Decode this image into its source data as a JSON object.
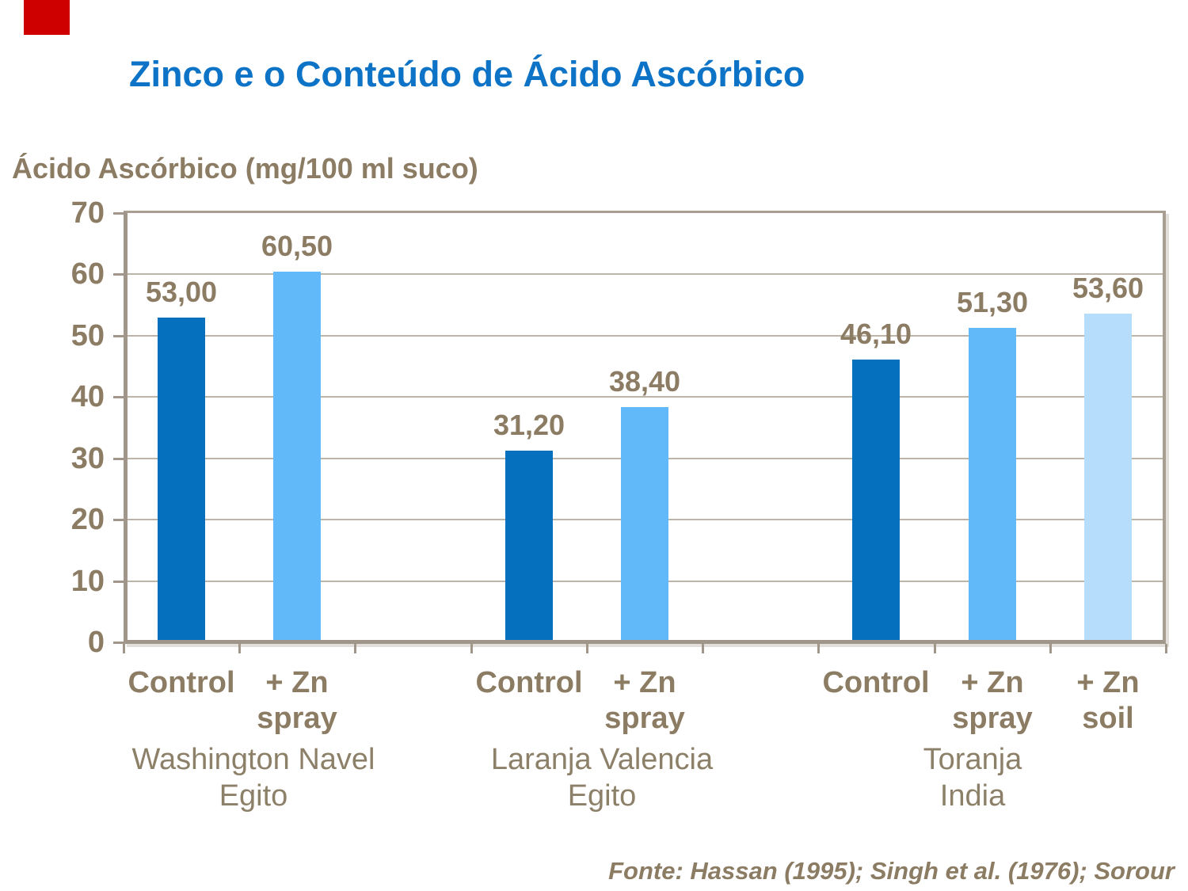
{
  "title": "Zinco e o Conteúdo de Ácido Ascórbico",
  "source": "Fonte: Hassan (1995); Singh et al. (1976); Sorour",
  "accent_colors": {
    "title_blue": "#0d73c6",
    "text_brown": "#8b7c63",
    "corner_marker_red": "#ce0000",
    "axis_line": "#a0978a",
    "gridline": "#bdb5a7"
  },
  "chart_data": {
    "type": "bar",
    "title": "Zinco e o Conteúdo de Ácido Ascórbico",
    "ylabel": "Ácido Ascórbico (mg/100 ml suco)",
    "xlabel": "",
    "ylim": [
      0,
      70
    ],
    "ytick_step": 10,
    "ytick_labels": [
      "0",
      "10",
      "20",
      "30",
      "40",
      "50",
      "60",
      "70"
    ],
    "grid": "horizontal",
    "legend_position": "none",
    "decimal_separator": ",",
    "series_colors": {
      "control": "#0571be",
      "zn_spray": "#62b9fa",
      "zn_soil": "#b6ddfb"
    },
    "groups": [
      {
        "label_lines": [
          "Washington Navel",
          "Egito"
        ],
        "bars": [
          {
            "tick_lines": [
              "Control"
            ],
            "series": "control",
            "value": 53.0,
            "value_label": "53,00"
          },
          {
            "tick_lines": [
              "+ Zn",
              "spray"
            ],
            "series": "zn_spray",
            "value": 60.5,
            "value_label": "60,50"
          }
        ]
      },
      {
        "label_lines": [
          "Laranja Valencia",
          "Egito"
        ],
        "bars": [
          {
            "tick_lines": [
              "Control"
            ],
            "series": "control",
            "value": 31.2,
            "value_label": "31,20"
          },
          {
            "tick_lines": [
              "+ Zn",
              "spray"
            ],
            "series": "zn_spray",
            "value": 38.4,
            "value_label": "38,40"
          }
        ]
      },
      {
        "label_lines": [
          "Toranja",
          "India"
        ],
        "bars": [
          {
            "tick_lines": [
              "Control"
            ],
            "series": "control",
            "value": 46.1,
            "value_label": "46,10"
          },
          {
            "tick_lines": [
              "+ Zn",
              "spray"
            ],
            "series": "zn_spray",
            "value": 51.3,
            "value_label": "51,30"
          },
          {
            "tick_lines": [
              "+ Zn",
              "soil"
            ],
            "series": "zn_soil",
            "value": 53.6,
            "value_label": "53,60"
          }
        ]
      }
    ]
  }
}
